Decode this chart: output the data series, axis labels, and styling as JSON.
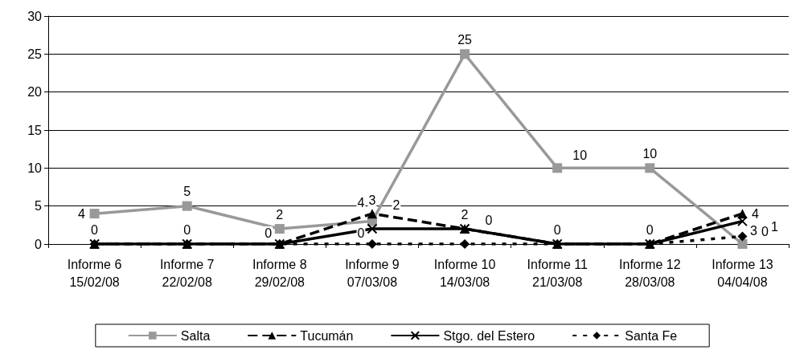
{
  "chart_data": {
    "type": "line",
    "categories": [
      "Informe 6\n15/02/08",
      "Informe 7\n22/02/08",
      "Informe 8\n29/02/08",
      "Informe 9\n07/03/08",
      "Informe 10\n14/03/08",
      "Informe 11\n21/03/08",
      "Informe 12\n28/03/08",
      "Informe 13\n04/04/08"
    ],
    "series": [
      {
        "name": "Salta",
        "color": "#999999",
        "marker": "square",
        "line_style": "solid",
        "values": [
          4,
          5,
          2,
          3,
          25,
          10,
          10,
          0
        ],
        "value_labels": [
          "4",
          "5",
          "2",
          "3",
          "25",
          "10",
          "10",
          "0"
        ]
      },
      {
        "name": "Tucumán",
        "color": "#000000",
        "marker": "triangle",
        "line_style": "dashed",
        "values": [
          0,
          0,
          0,
          4,
          2,
          0,
          0,
          4
        ],
        "value_labels": [
          "0",
          "0",
          "0",
          "4",
          "2",
          "0",
          "0",
          "4"
        ]
      },
      {
        "name": "Stgo. del Estero",
        "color": "#000000",
        "marker": "cross",
        "line_style": "solid",
        "values": [
          0,
          0,
          0,
          2,
          2,
          0,
          0,
          3
        ],
        "value_labels": [
          null,
          null,
          null,
          "2",
          null,
          null,
          null,
          "3"
        ]
      },
      {
        "name": "Santa Fe",
        "color": "#000000",
        "marker": "diamond",
        "line_style": "dotted",
        "values": [
          0,
          0,
          0,
          0,
          0,
          0,
          0,
          1
        ],
        "value_labels": [
          null,
          null,
          null,
          "0",
          "0",
          null,
          null,
          "1"
        ]
      }
    ],
    "ylim": [
      0,
      30
    ],
    "yticks": [
      0,
      5,
      10,
      15,
      20,
      25,
      30
    ],
    "grid": "y",
    "legend": "bottom"
  }
}
